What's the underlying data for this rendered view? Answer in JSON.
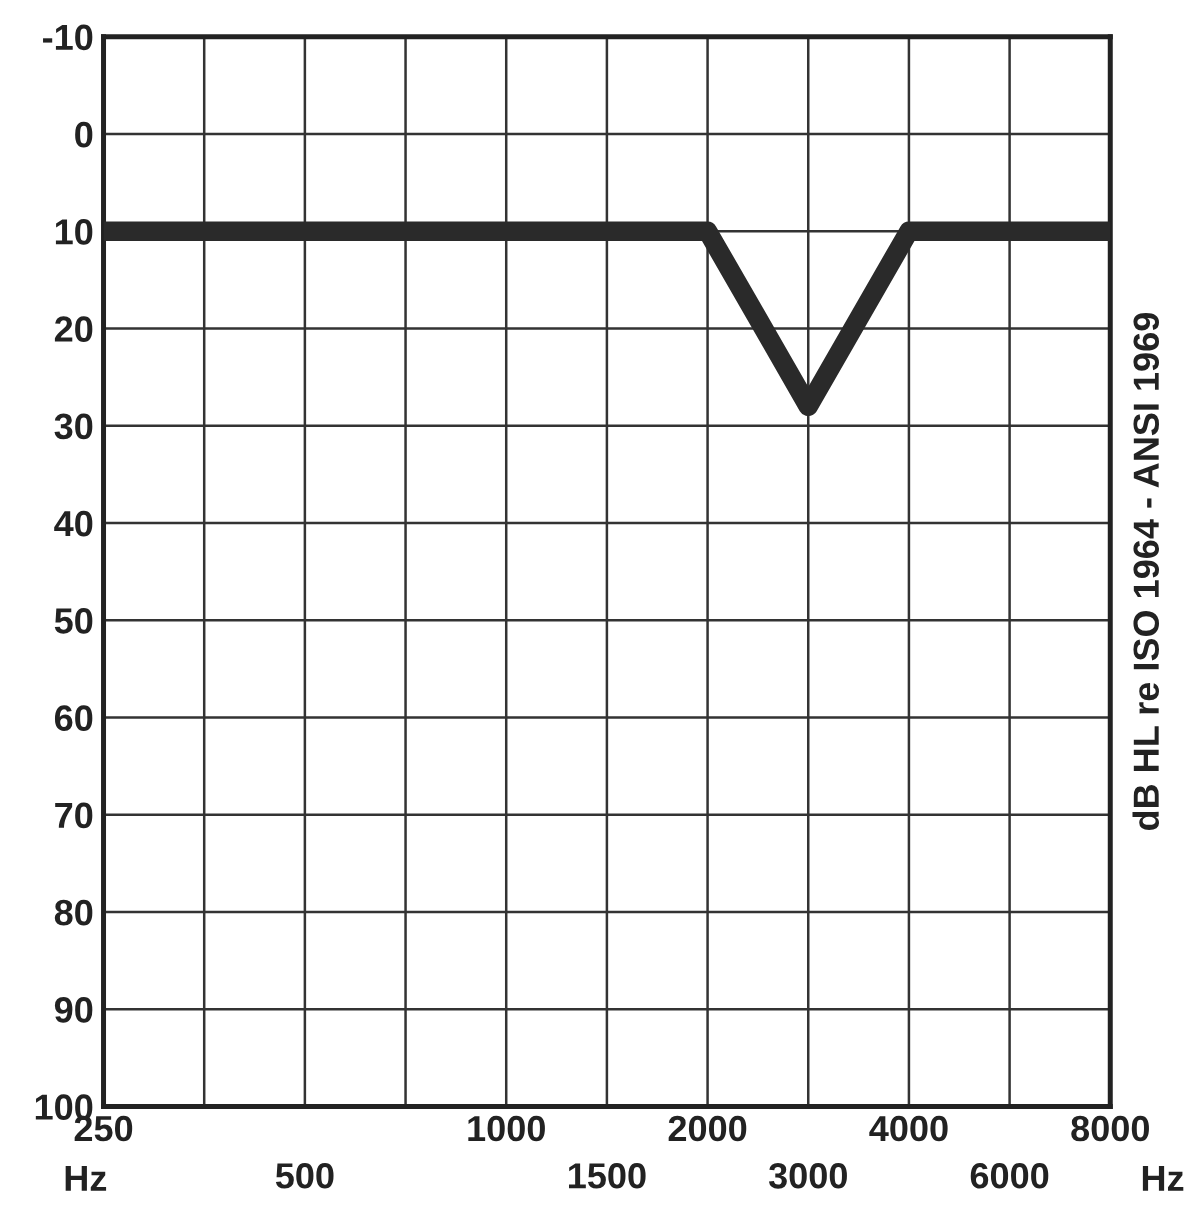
{
  "chart_data": {
    "type": "line",
    "categories": [
      "250",
      null,
      "500",
      null,
      "1000",
      "1500",
      "2000",
      "3000",
      "4000",
      "6000",
      "8000"
    ],
    "series": [
      {
        "color": "#2a2a2a",
        "values": [
          10,
          10,
          10,
          10,
          10,
          10,
          10,
          28,
          10,
          10,
          10
        ]
      }
    ],
    "ylim": [
      100,
      -10
    ],
    "yticks": [
      -10,
      0,
      10,
      20,
      30,
      40,
      50,
      60,
      70,
      80,
      90,
      100
    ],
    "ylabel": "dB HL re ISO 1964 - ANSI 1969",
    "annotations": [
      "Hz",
      "Hz"
    ],
    "grid": true,
    "marker": "none",
    "line_style": "solid"
  }
}
